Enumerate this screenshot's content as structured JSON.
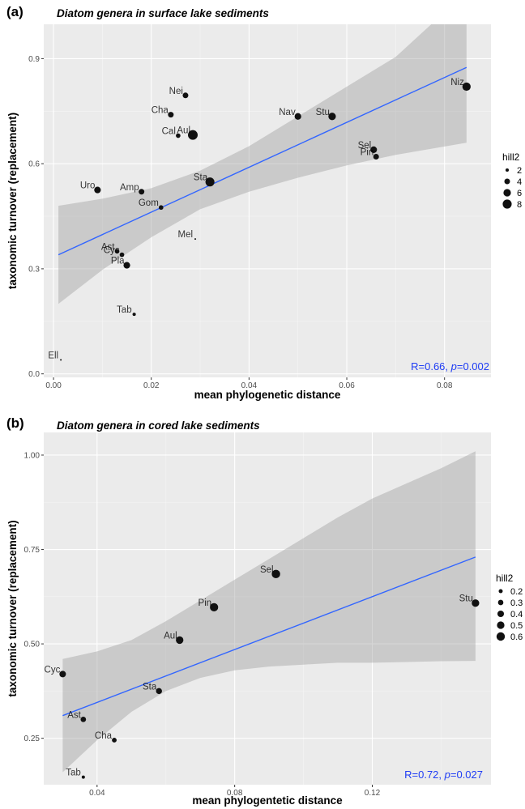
{
  "chart_data": [
    {
      "panel": "(a)",
      "type": "scatter",
      "title": "Diatom genera in surface lake sediments",
      "xlabel": "mean phylogenetic distance",
      "ylabel": "taxonomic turnover (replacement)",
      "xlim": [
        -0.002,
        0.0895
      ],
      "ylim": [
        -0.01,
        0.998
      ],
      "xticks": [
        0.0,
        0.02,
        0.04,
        0.06,
        0.08
      ],
      "xtick_labels": [
        "0.00",
        "0.02",
        "0.04",
        "0.06",
        "0.08"
      ],
      "yticks": [
        0.0,
        0.3,
        0.6,
        0.9
      ],
      "ytick_labels": [
        "0.0",
        "0.3",
        "0.6",
        "0.9"
      ],
      "grid": true,
      "legend": {
        "title": "hill2",
        "values": [
          2,
          4,
          6,
          8
        ],
        "labels": [
          "2",
          "4",
          "6",
          "8"
        ],
        "placement": "right"
      },
      "fit": {
        "x": [
          0.001,
          0.0845
        ],
        "y": [
          0.34,
          0.875
        ]
      },
      "ci_band": {
        "x": [
          0.001,
          0.01,
          0.02,
          0.03,
          0.04,
          0.05,
          0.06,
          0.07,
          0.0845
        ],
        "lower": [
          0.2,
          0.297,
          0.39,
          0.47,
          0.52,
          0.56,
          0.595,
          0.625,
          0.66
        ],
        "upper": [
          0.48,
          0.5,
          0.53,
          0.58,
          0.65,
          0.735,
          0.82,
          0.905,
          1.09
        ]
      },
      "stat_text": {
        "prefix": "R=0.66, ",
        "p_symbol": "p",
        "suffix": "=0.002"
      },
      "points": [
        {
          "label": "Niz",
          "x": 0.0845,
          "y": 0.82,
          "hill2": 7
        },
        {
          "label": "Nei",
          "x": 0.027,
          "y": 0.795,
          "hill2": 4
        },
        {
          "label": "Cha",
          "x": 0.024,
          "y": 0.74,
          "hill2": 4
        },
        {
          "label": "Nav",
          "x": 0.05,
          "y": 0.735,
          "hill2": 5
        },
        {
          "label": "Stu",
          "x": 0.057,
          "y": 0.735,
          "hill2": 6
        },
        {
          "label": "Cal",
          "x": 0.0255,
          "y": 0.68,
          "hill2": 3
        },
        {
          "label": "Aul",
          "x": 0.0285,
          "y": 0.682,
          "hill2": 9
        },
        {
          "label": "Sel",
          "x": 0.0655,
          "y": 0.64,
          "hill2": 5
        },
        {
          "label": "Pin",
          "x": 0.066,
          "y": 0.62,
          "hill2": 4
        },
        {
          "label": "Sta",
          "x": 0.032,
          "y": 0.548,
          "hill2": 8
        },
        {
          "label": "Uro",
          "x": 0.009,
          "y": 0.525,
          "hill2": 5
        },
        {
          "label": "Amp",
          "x": 0.018,
          "y": 0.52,
          "hill2": 4
        },
        {
          "label": "Gom",
          "x": 0.022,
          "y": 0.475,
          "hill2": 3
        },
        {
          "label": "Mel",
          "x": 0.029,
          "y": 0.385,
          "hill2": 1
        },
        {
          "label": "Ast",
          "x": 0.013,
          "y": 0.35,
          "hill2": 3
        },
        {
          "label": "Cyc",
          "x": 0.014,
          "y": 0.34,
          "hill2": 3
        },
        {
          "label": "Pla",
          "x": 0.015,
          "y": 0.31,
          "hill2": 5
        },
        {
          "label": "Tab",
          "x": 0.0165,
          "y": 0.17,
          "hill2": 2
        },
        {
          "label": "Ell",
          "x": 0.0015,
          "y": 0.04,
          "hill2": 1
        }
      ]
    },
    {
      "panel": "(b)",
      "type": "scatter",
      "title": "Diatom genera in cored lake sediments",
      "xlabel": "mean phylogentetic distance",
      "ylabel": "taxonomic turnover (replacement)",
      "xlim": [
        0.0245,
        0.1545
      ],
      "ylim": [
        0.127,
        1.06
      ],
      "xticks": [
        0.04,
        0.08,
        0.12
      ],
      "xtick_labels": [
        "0.04",
        "0.08",
        "0.12"
      ],
      "yticks": [
        0.25,
        0.5,
        0.75,
        1.0
      ],
      "ytick_labels": [
        "0.25",
        "0.50",
        "0.75",
        "1.00"
      ],
      "grid": true,
      "legend": {
        "title": "hill2",
        "values": [
          0.2,
          0.3,
          0.4,
          0.5,
          0.6
        ],
        "labels": [
          "0.2",
          "0.3",
          "0.4",
          "0.5",
          "0.6"
        ],
        "placement": "right"
      },
      "fit": {
        "x": [
          0.03,
          0.15
        ],
        "y": [
          0.31,
          0.73
        ]
      },
      "ci_band": {
        "x": [
          0.03,
          0.04,
          0.05,
          0.06,
          0.07,
          0.08,
          0.09,
          0.1,
          0.11,
          0.12,
          0.13,
          0.14,
          0.15
        ],
        "lower": [
          0.16,
          0.245,
          0.32,
          0.375,
          0.41,
          0.43,
          0.44,
          0.445,
          0.45,
          0.45,
          0.452,
          0.454,
          0.455
        ],
        "upper": [
          0.46,
          0.48,
          0.51,
          0.56,
          0.615,
          0.67,
          0.725,
          0.78,
          0.835,
          0.885,
          0.925,
          0.965,
          1.01
        ]
      },
      "stat_text": {
        "prefix": "R=0.72, ",
        "p_symbol": "p",
        "suffix": "=0.027"
      },
      "points": [
        {
          "label": "Sel",
          "x": 0.092,
          "y": 0.685,
          "hill2": 0.6
        },
        {
          "label": "Pin",
          "x": 0.074,
          "y": 0.597,
          "hill2": 0.58
        },
        {
          "label": "Stu",
          "x": 0.15,
          "y": 0.608,
          "hill2": 0.5
        },
        {
          "label": "Aul",
          "x": 0.064,
          "y": 0.51,
          "hill2": 0.5
        },
        {
          "label": "Cyc",
          "x": 0.03,
          "y": 0.42,
          "hill2": 0.4
        },
        {
          "label": "Sta",
          "x": 0.058,
          "y": 0.375,
          "hill2": 0.35
        },
        {
          "label": "Ast",
          "x": 0.036,
          "y": 0.3,
          "hill2": 0.3
        },
        {
          "label": "Cha",
          "x": 0.045,
          "y": 0.245,
          "hill2": 0.25
        },
        {
          "label": "Tab",
          "x": 0.036,
          "y": 0.147,
          "hill2": 0.15
        }
      ]
    }
  ]
}
